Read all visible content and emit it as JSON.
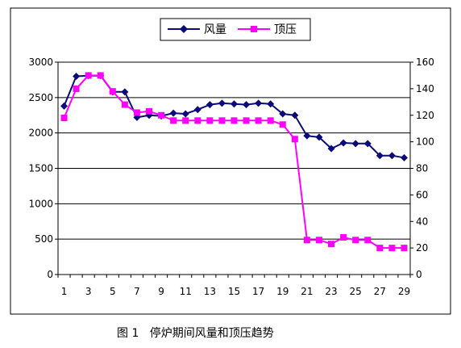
{
  "caption": "图 1   停炉期间风量和顶压趋势",
  "chart_data": {
    "type": "line",
    "title": "",
    "xlabel": "",
    "ylabel": "",
    "categories": [
      1,
      2,
      3,
      4,
      5,
      6,
      7,
      8,
      9,
      10,
      11,
      12,
      13,
      14,
      15,
      16,
      17,
      18,
      19,
      20,
      21,
      22,
      23,
      24,
      25,
      26,
      27,
      28,
      29
    ],
    "x_tick_labels": [
      "1",
      "3",
      "5",
      "7",
      "9",
      "11",
      "13",
      "15",
      "17",
      "19",
      "21",
      "23",
      "25",
      "27",
      "29"
    ],
    "y_left": {
      "ylim": [
        0,
        3000
      ],
      "ticks": [
        "0",
        "500",
        "1000",
        "1500",
        "2000",
        "2500",
        "3000"
      ]
    },
    "y_right": {
      "ylim": [
        0,
        160
      ],
      "ticks": [
        "0",
        "20",
        "40",
        "60",
        "80",
        "100",
        "120",
        "140",
        "160"
      ]
    },
    "grid": "horizontal",
    "legend_position": "top",
    "series": [
      {
        "name": "风量",
        "axis": "left",
        "color": "#0a0a78",
        "marker": "diamond",
        "values": [
          2380,
          2800,
          2810,
          2810,
          2580,
          2580,
          2220,
          2250,
          2240,
          2280,
          2270,
          2330,
          2400,
          2420,
          2410,
          2400,
          2420,
          2410,
          2270,
          2250,
          1960,
          1940,
          1780,
          1860,
          1850,
          1850,
          1680,
          1680,
          1650
        ]
      },
      {
        "name": "顶压",
        "axis": "right",
        "color": "#ff00ff",
        "marker": "square",
        "values": [
          118,
          140,
          150,
          150,
          138,
          128,
          122,
          123,
          120,
          116,
          116,
          116,
          116,
          116,
          116,
          116,
          116,
          116,
          113,
          102,
          26,
          26,
          23,
          28,
          26,
          26,
          20,
          20,
          20
        ]
      }
    ]
  }
}
